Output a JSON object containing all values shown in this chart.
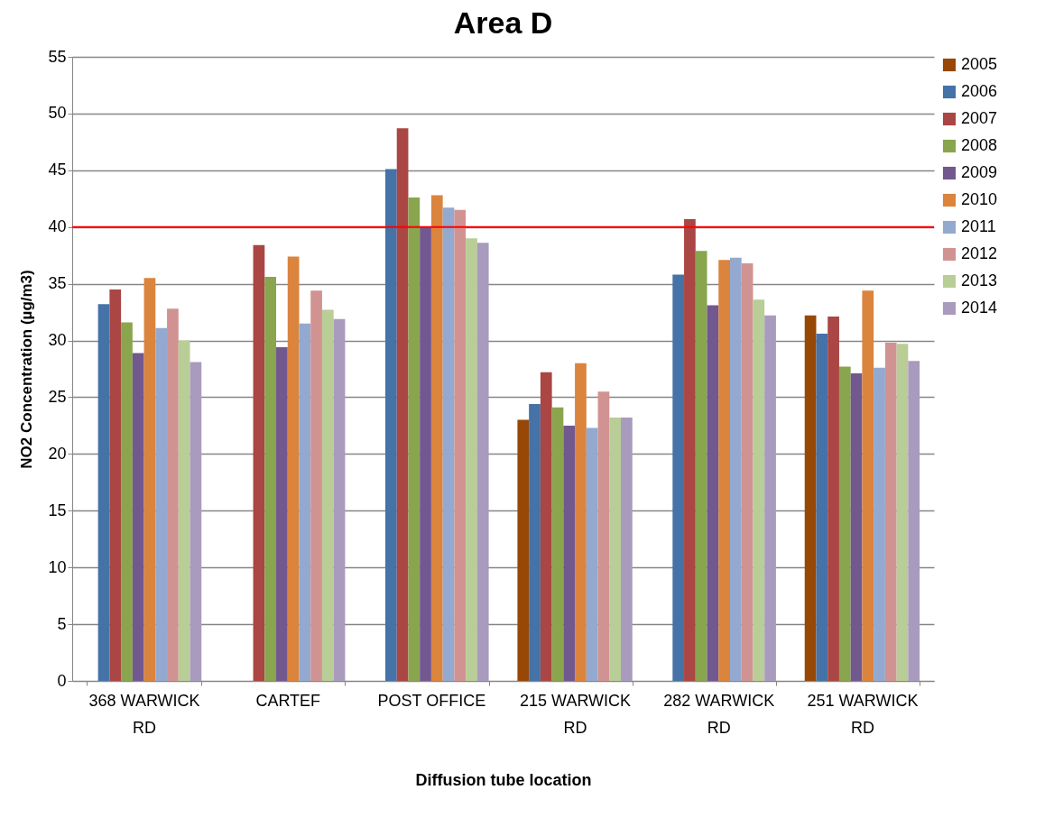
{
  "chart_data": {
    "type": "bar",
    "title": "Area D",
    "xlabel": "Diffusion tube location",
    "ylabel": "NO2 Concentration (µg/m3)",
    "categories": [
      "368 WARWICK RD",
      "CARTEF",
      "POST OFFICE",
      "215 WARWICK RD",
      "282 WARWICK RD",
      "251 WARWICK RD"
    ],
    "series": [
      {
        "name": "2005",
        "color": "#974706",
        "values": [
          null,
          null,
          null,
          23.0,
          null,
          32.2
        ]
      },
      {
        "name": "2006",
        "color": "#4572a7",
        "values": [
          33.2,
          null,
          45.1,
          24.4,
          35.8,
          30.6
        ]
      },
      {
        "name": "2007",
        "color": "#aa4643",
        "values": [
          34.5,
          38.4,
          48.7,
          27.2,
          40.7,
          32.1
        ]
      },
      {
        "name": "2008",
        "color": "#89a54e",
        "values": [
          31.6,
          35.6,
          42.6,
          24.1,
          37.9,
          27.7
        ]
      },
      {
        "name": "2009",
        "color": "#71588f",
        "values": [
          28.9,
          29.4,
          40.0,
          22.5,
          33.1,
          27.1
        ]
      },
      {
        "name": "2010",
        "color": "#db843d",
        "values": [
          35.5,
          37.4,
          42.8,
          28.0,
          37.1,
          34.4
        ]
      },
      {
        "name": "2011",
        "color": "#93a9cf",
        "values": [
          31.1,
          31.5,
          41.7,
          22.3,
          37.3,
          27.6
        ]
      },
      {
        "name": "2012",
        "color": "#d19392",
        "values": [
          32.8,
          34.4,
          41.5,
          25.5,
          36.8,
          29.8
        ]
      },
      {
        "name": "2013",
        "color": "#b9cd96",
        "values": [
          30.0,
          32.7,
          39.0,
          23.2,
          33.6,
          29.7
        ]
      },
      {
        "name": "2014",
        "color": "#a99bbd",
        "values": [
          28.1,
          31.9,
          38.6,
          23.2,
          32.2,
          28.2
        ]
      }
    ],
    "ylim": [
      0,
      55
    ],
    "yticks": [
      0,
      5,
      10,
      15,
      20,
      25,
      30,
      35,
      40,
      45,
      50,
      55
    ],
    "grid": "y",
    "legend": "right",
    "ref_lines": [
      {
        "axis": "y",
        "value": 40,
        "color": "#ff0000"
      }
    ]
  }
}
